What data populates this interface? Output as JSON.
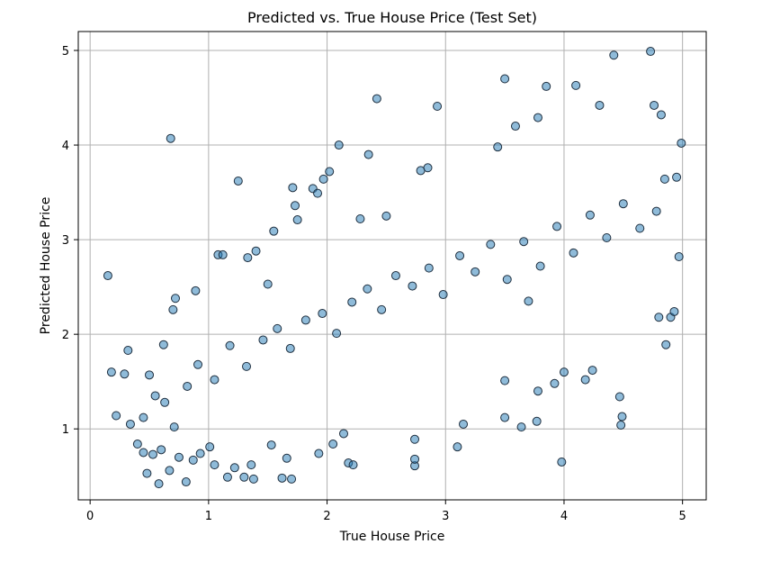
{
  "chart_data": {
    "type": "scatter",
    "title": "Predicted vs. True House Price (Test Set)",
    "xlabel": "True House Price",
    "ylabel": "Predicted House Price",
    "xlim": [
      -0.1,
      5.2
    ],
    "ylim": [
      0.25,
      5.2
    ],
    "xticks": [
      "0",
      "1",
      "2",
      "3",
      "4",
      "5"
    ],
    "yticks": [
      "1",
      "2",
      "3",
      "4",
      "5"
    ],
    "grid": true,
    "marker_color": "#1f77b4",
    "marker_edge_color": "#1f2f3f",
    "marker_alpha": 0.5,
    "points": [
      [
        0.15,
        2.62
      ],
      [
        0.18,
        1.6
      ],
      [
        0.22,
        1.14
      ],
      [
        0.29,
        1.58
      ],
      [
        0.32,
        1.83
      ],
      [
        0.34,
        1.05
      ],
      [
        0.4,
        0.84
      ],
      [
        0.45,
        0.75
      ],
      [
        0.48,
        0.53
      ],
      [
        0.5,
        1.57
      ],
      [
        0.53,
        0.73
      ],
      [
        0.58,
        0.42
      ],
      [
        0.6,
        0.78
      ],
      [
        0.62,
        1.89
      ],
      [
        0.67,
        0.56
      ],
      [
        0.68,
        4.07
      ],
      [
        0.7,
        2.26
      ],
      [
        0.72,
        2.38
      ],
      [
        0.75,
        0.7
      ],
      [
        0.81,
        0.44
      ],
      [
        0.87,
        0.67
      ],
      [
        0.89,
        2.46
      ],
      [
        0.93,
        0.74
      ],
      [
        1.01,
        0.81
      ],
      [
        1.05,
        0.62
      ],
      [
        1.08,
        2.84
      ],
      [
        1.12,
        2.84
      ],
      [
        1.16,
        0.49
      ],
      [
        1.22,
        0.59
      ],
      [
        1.25,
        3.62
      ],
      [
        1.3,
        0.49
      ],
      [
        1.33,
        2.81
      ],
      [
        1.36,
        0.62
      ],
      [
        1.38,
        0.47
      ],
      [
        1.4,
        2.88
      ],
      [
        1.5,
        2.53
      ],
      [
        1.53,
        0.83
      ],
      [
        1.55,
        3.09
      ],
      [
        1.62,
        0.48
      ],
      [
        1.66,
        0.69
      ],
      [
        1.7,
        0.47
      ],
      [
        1.71,
        3.55
      ],
      [
        1.73,
        3.36
      ],
      [
        1.75,
        3.21
      ],
      [
        1.88,
        3.54
      ],
      [
        1.92,
        3.49
      ],
      [
        1.93,
        0.74
      ],
      [
        1.97,
        3.64
      ],
      [
        2.02,
        3.72
      ],
      [
        2.05,
        0.84
      ],
      [
        2.1,
        4.0
      ],
      [
        2.14,
        0.95
      ],
      [
        2.18,
        0.64
      ],
      [
        2.22,
        0.62
      ],
      [
        2.28,
        3.22
      ],
      [
        2.35,
        3.9
      ],
      [
        2.42,
        4.49
      ],
      [
        2.5,
        3.25
      ],
      [
        2.74,
        0.61
      ],
      [
        2.74,
        0.68
      ],
      [
        2.74,
        0.89
      ],
      [
        2.79,
        3.73
      ],
      [
        2.85,
        3.76
      ],
      [
        2.93,
        4.41
      ],
      [
        3.1,
        0.81
      ],
      [
        3.15,
        1.05
      ],
      [
        3.44,
        3.98
      ],
      [
        3.5,
        1.12
      ],
      [
        3.5,
        1.51
      ],
      [
        3.5,
        4.7
      ],
      [
        3.59,
        4.2
      ],
      [
        3.64,
        1.02
      ],
      [
        3.7,
        2.35
      ],
      [
        3.77,
        1.08
      ],
      [
        3.78,
        1.4
      ],
      [
        3.78,
        4.29
      ],
      [
        3.85,
        4.62
      ],
      [
        3.92,
        1.48
      ],
      [
        3.98,
        0.65
      ],
      [
        4.0,
        1.6
      ],
      [
        4.1,
        4.63
      ],
      [
        4.18,
        1.52
      ],
      [
        4.24,
        1.62
      ],
      [
        4.3,
        4.42
      ],
      [
        4.42,
        4.95
      ],
      [
        4.47,
        1.34
      ],
      [
        4.48,
        1.04
      ],
      [
        4.49,
        1.13
      ],
      [
        4.73,
        4.99
      ],
      [
        4.76,
        4.42
      ],
      [
        4.8,
        2.18
      ],
      [
        4.82,
        4.32
      ],
      [
        4.85,
        3.64
      ],
      [
        4.86,
        1.89
      ],
      [
        4.9,
        2.18
      ],
      [
        4.93,
        2.24
      ],
      [
        4.95,
        3.66
      ],
      [
        4.97,
        2.82
      ],
      [
        4.99,
        4.02
      ],
      [
        0.45,
        1.12
      ],
      [
        0.55,
        1.35
      ],
      [
        0.63,
        1.28
      ],
      [
        0.71,
        1.02
      ],
      [
        0.82,
        1.45
      ],
      [
        0.91,
        1.68
      ],
      [
        1.05,
        1.52
      ],
      [
        1.18,
        1.88
      ],
      [
        1.32,
        1.66
      ],
      [
        1.46,
        1.94
      ],
      [
        1.58,
        2.06
      ],
      [
        1.69,
        1.85
      ],
      [
        1.82,
        2.15
      ],
      [
        1.96,
        2.22
      ],
      [
        2.08,
        2.01
      ],
      [
        2.21,
        2.34
      ],
      [
        2.34,
        2.48
      ],
      [
        2.46,
        2.26
      ],
      [
        2.58,
        2.62
      ],
      [
        2.72,
        2.51
      ],
      [
        2.86,
        2.7
      ],
      [
        2.98,
        2.42
      ],
      [
        3.12,
        2.83
      ],
      [
        3.25,
        2.66
      ],
      [
        3.38,
        2.95
      ],
      [
        3.52,
        2.58
      ],
      [
        3.66,
        2.98
      ],
      [
        3.8,
        2.72
      ],
      [
        3.94,
        3.14
      ],
      [
        4.08,
        2.86
      ],
      [
        4.22,
        3.26
      ],
      [
        4.36,
        3.02
      ],
      [
        4.5,
        3.38
      ],
      [
        4.64,
        3.12
      ],
      [
        4.78,
        3.3
      ]
    ]
  }
}
